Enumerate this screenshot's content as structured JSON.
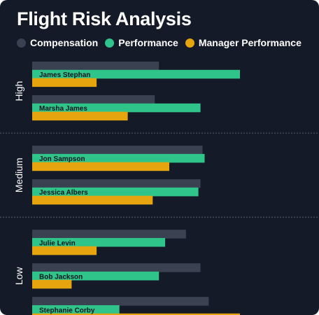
{
  "chart_data": {
    "type": "bar",
    "orientation": "horizontal",
    "title": "Flight Risk Analysis",
    "legend_position": "top-left",
    "grid": false,
    "xlim": [
      0,
      100
    ],
    "series": [
      {
        "name": "Compensation",
        "color": "#3a4150"
      },
      {
        "name": "Performance",
        "color": "#2fc58a"
      },
      {
        "name": "Manager Performance",
        "color": "#e6a40f"
      }
    ],
    "groups": [
      {
        "label": "High",
        "people": [
          {
            "name": "James Stephan",
            "values": [
              61,
              100,
              31
            ]
          },
          {
            "name": "Marsha James",
            "values": [
              59,
              81,
              46
            ]
          }
        ]
      },
      {
        "label": "Medium",
        "people": [
          {
            "name": "Jon Sampson",
            "values": [
              82,
              83,
              66
            ]
          },
          {
            "name": "Jessica Albers",
            "values": [
              81,
              80,
              58
            ]
          }
        ]
      },
      {
        "label": "Low",
        "people": [
          {
            "name": "Julie Levin",
            "values": [
              74,
              64,
              31
            ]
          },
          {
            "name": "Bob Jackson",
            "values": [
              81,
              61,
              19
            ]
          },
          {
            "name": "Stephanie Corby",
            "values": [
              85,
              42,
              100
            ]
          }
        ]
      }
    ]
  }
}
